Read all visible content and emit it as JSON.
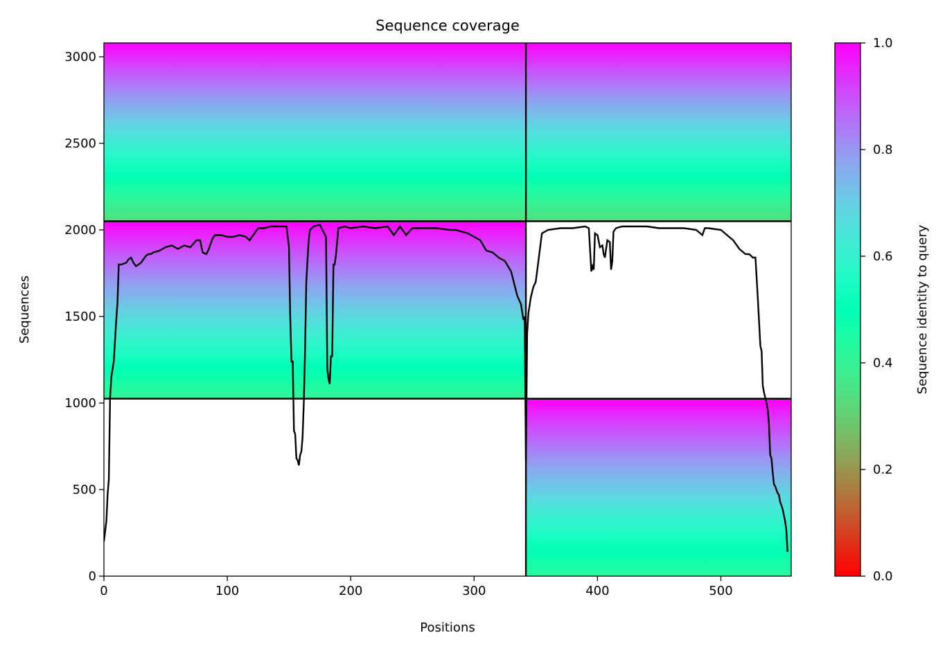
{
  "chart_data": {
    "type": "heatmap",
    "title": "Sequence coverage",
    "xlabel": "Positions",
    "ylabel": "Sequences",
    "xlim": [
      0,
      557
    ],
    "ylim": [
      0,
      3080
    ],
    "x_ticks": [
      0,
      100,
      200,
      300,
      400,
      500
    ],
    "y_ticks": [
      0,
      500,
      1000,
      1500,
      2000,
      2500,
      3000
    ],
    "x_tick_labels": [
      "0",
      "100",
      "200",
      "300",
      "400",
      "500"
    ],
    "y_tick_labels": [
      "0",
      "500",
      "1000",
      "1500",
      "2000",
      "2500",
      "3000"
    ],
    "grid": false,
    "chain_boundaries_x": [
      342
    ],
    "block_boundaries_y": [
      1025,
      2050
    ],
    "blocks": [
      {
        "x": [
          0,
          342
        ],
        "y": [
          2050,
          3080
        ],
        "identity_bottom": 0.33,
        "identity_top": 1.0
      },
      {
        "x": [
          342,
          557
        ],
        "y": [
          2050,
          3080
        ],
        "identity_bottom": 0.33,
        "identity_top": 1.0
      },
      {
        "x": [
          0,
          342
        ],
        "y": [
          1025,
          2050
        ],
        "identity_bottom": 0.4,
        "identity_top": 1.0
      },
      {
        "x": [
          342,
          557
        ],
        "y": [
          0,
          1025
        ],
        "identity_bottom": 0.42,
        "identity_top": 1.0
      }
    ],
    "coverage": {
      "x": [
        0,
        2,
        3,
        4,
        5,
        6,
        8,
        10,
        11,
        12,
        14,
        18,
        20,
        22,
        24,
        26,
        28,
        30,
        32,
        34,
        36,
        38,
        40,
        45,
        50,
        55,
        60,
        65,
        70,
        75,
        78,
        80,
        83,
        85,
        88,
        90,
        95,
        100,
        105,
        110,
        115,
        118,
        120,
        122,
        125,
        130,
        135,
        140,
        145,
        148,
        150,
        151,
        152,
        153,
        154,
        155,
        156,
        157,
        158,
        159,
        160,
        161,
        162,
        163,
        164,
        165,
        166,
        167,
        170,
        175,
        180,
        181,
        182,
        183,
        184,
        185,
        186,
        187,
        188,
        190,
        195,
        200,
        210,
        220,
        230,
        235,
        240,
        245,
        250,
        260,
        270,
        280,
        285,
        290,
        295,
        300,
        305,
        310,
        315,
        320,
        325,
        330,
        335,
        338,
        340,
        341,
        342,
        343,
        344,
        346,
        348,
        350,
        355,
        360,
        370,
        380,
        390,
        393,
        395,
        396,
        397,
        398,
        400,
        402,
        404,
        405,
        406,
        408,
        410,
        411,
        412,
        413,
        415,
        420,
        430,
        440,
        450,
        460,
        470,
        480,
        485,
        487,
        490,
        500,
        510,
        515,
        520,
        523,
        526,
        528,
        530,
        532,
        533,
        534,
        535,
        536,
        537,
        538,
        539,
        540,
        541,
        542,
        543,
        544,
        545,
        546,
        547,
        548,
        550,
        552,
        553,
        554
      ],
      "y": [
        200,
        320,
        470,
        560,
        1030,
        1150,
        1240,
        1480,
        1580,
        1800,
        1800,
        1810,
        1830,
        1840,
        1810,
        1790,
        1800,
        1810,
        1830,
        1850,
        1860,
        1860,
        1870,
        1880,
        1900,
        1910,
        1890,
        1910,
        1900,
        1940,
        1940,
        1870,
        1860,
        1890,
        1950,
        1970,
        1970,
        1960,
        1960,
        1970,
        1960,
        1940,
        1960,
        1980,
        2010,
        2010,
        2020,
        2020,
        2020,
        2020,
        1900,
        1500,
        1240,
        1240,
        840,
        820,
        680,
        670,
        640,
        700,
        720,
        800,
        1000,
        1300,
        1700,
        1830,
        1940,
        2000,
        2020,
        2030,
        1960,
        1200,
        1140,
        1110,
        1270,
        1270,
        1800,
        1800,
        1850,
        2010,
        2020,
        2010,
        2020,
        2010,
        2020,
        1970,
        2020,
        1970,
        2010,
        2010,
        2010,
        2000,
        2000,
        1990,
        1980,
        1960,
        1940,
        1880,
        1870,
        1840,
        1820,
        1760,
        1620,
        1570,
        1480,
        1500,
        660,
        1400,
        1520,
        1610,
        1670,
        1700,
        1980,
        2000,
        2010,
        2010,
        2020,
        2010,
        1760,
        1790,
        1770,
        1980,
        1970,
        1900,
        1910,
        1860,
        1840,
        1940,
        1930,
        1770,
        1820,
        1990,
        2010,
        2020,
        2020,
        2020,
        2010,
        2010,
        2010,
        2000,
        1970,
        2010,
        2010,
        2000,
        1940,
        1890,
        1860,
        1860,
        1840,
        1840,
        1600,
        1330,
        1300,
        1100,
        1060,
        1030,
        1000,
        960,
        880,
        700,
        680,
        600,
        530,
        520,
        500,
        480,
        470,
        430,
        390,
        320,
        270,
        140
      ]
    },
    "colorbar": {
      "label": "Sequence identity to query",
      "colormap": "rainbow_r",
      "range": [
        0.0,
        1.0
      ],
      "ticks": [
        0.0,
        0.2,
        0.4,
        0.6,
        0.8,
        1.0
      ],
      "tick_labels": [
        "0.0",
        "0.2",
        "0.4",
        "0.6",
        "0.8",
        "1.0"
      ]
    },
    "line_color": "#000000"
  }
}
